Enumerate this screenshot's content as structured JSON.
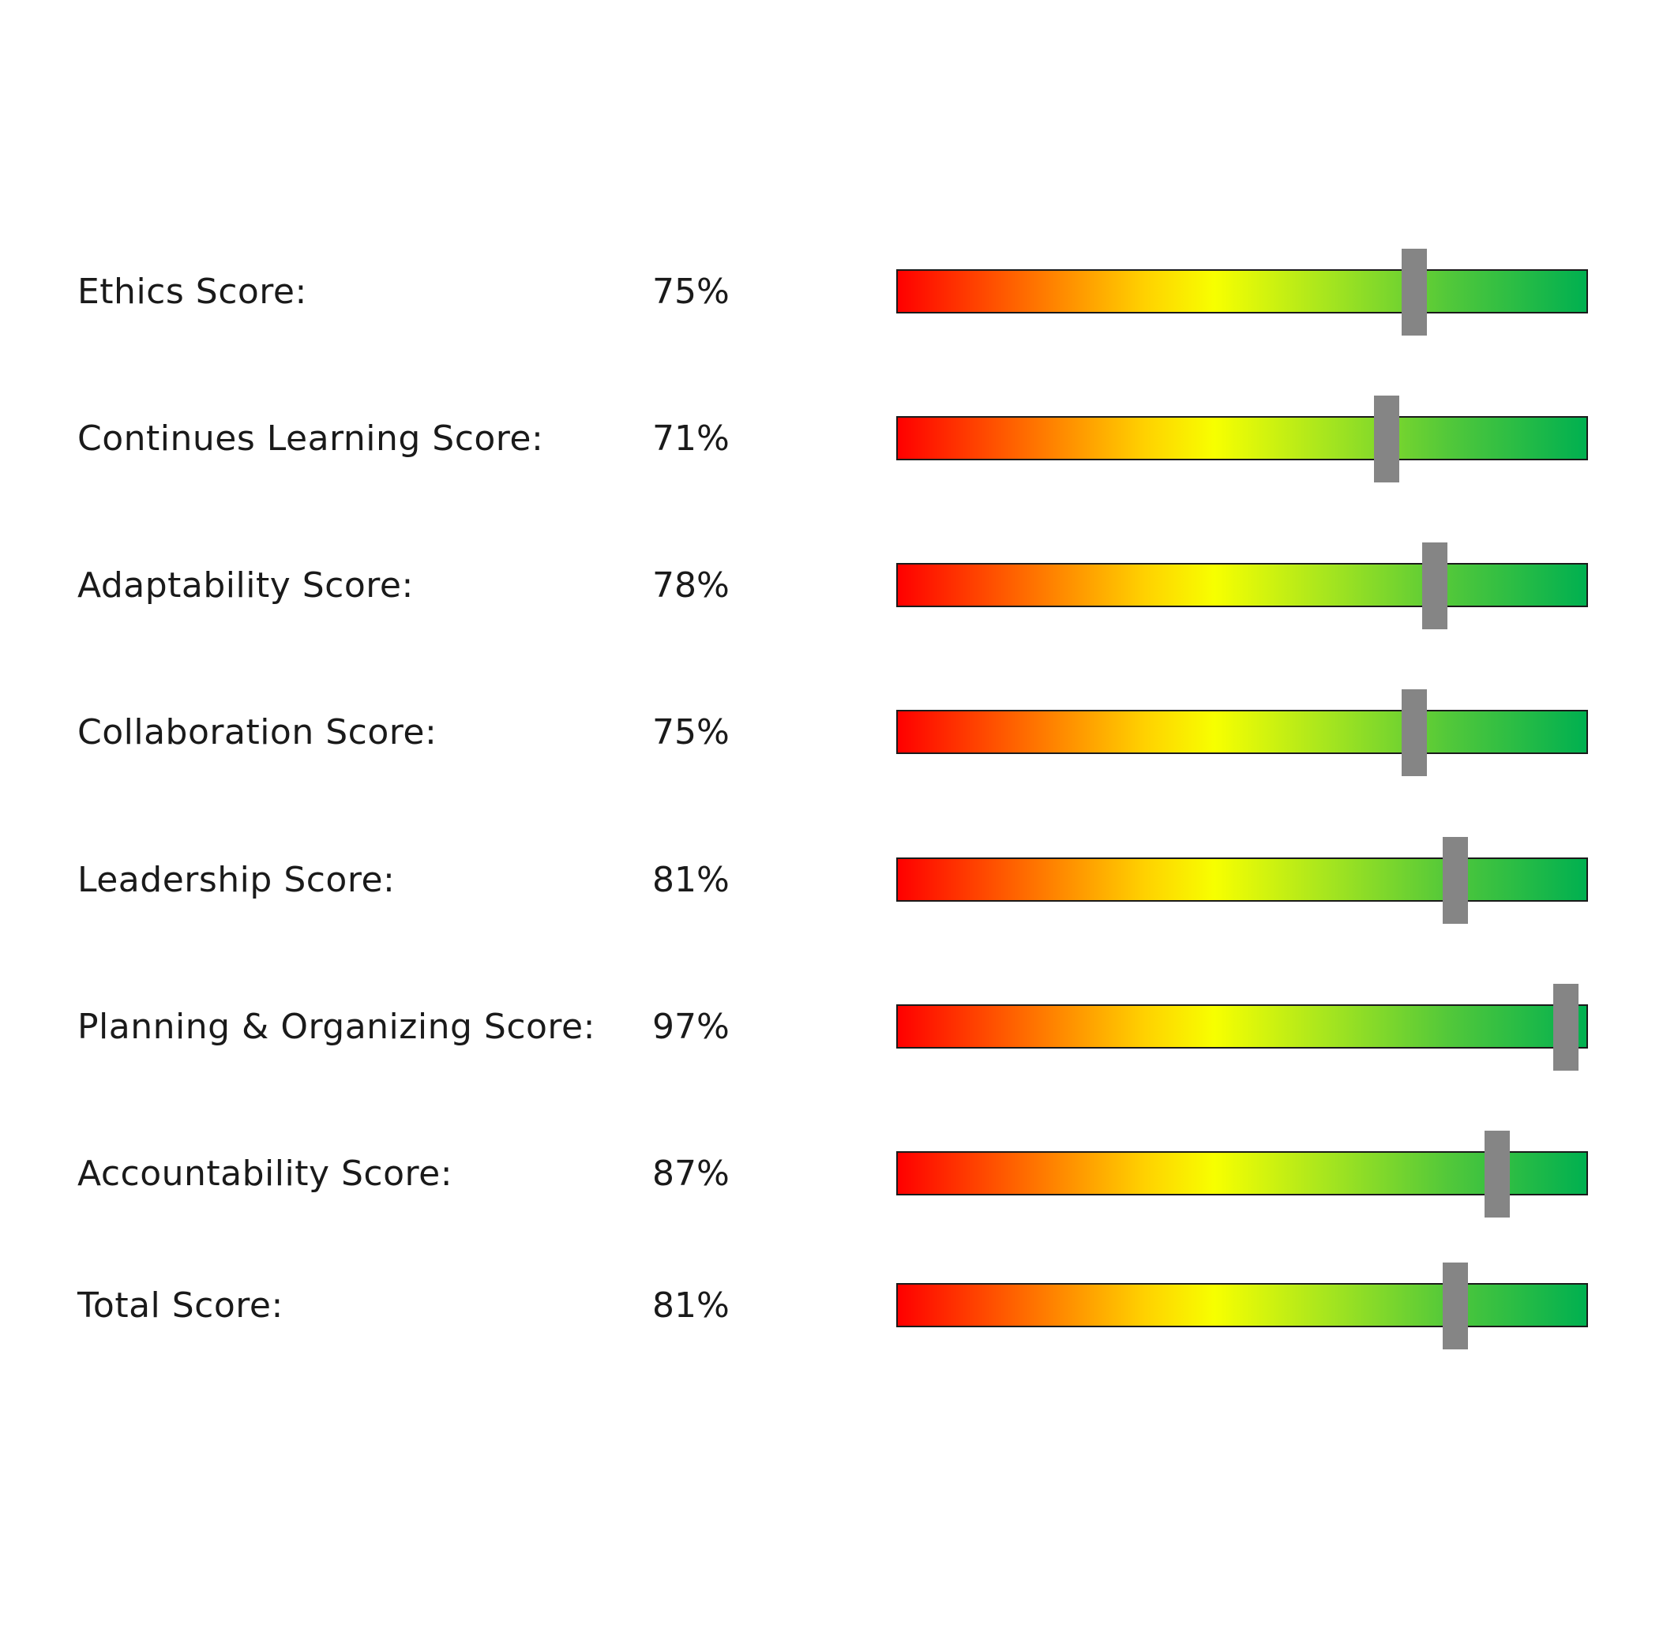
{
  "chart_data": {
    "type": "bar",
    "xlim": [
      0,
      100
    ],
    "unit": "%",
    "gradient_colors": [
      "#ff0000",
      "#ff8000",
      "#ffd200",
      "#f7ff00",
      "#a8e61e",
      "#52c83a",
      "#00b050"
    ],
    "marker_color": "#858585",
    "categories": [
      "Ethics Score:",
      "Continues Learning Score:",
      "Adaptability Score:",
      "Collaboration Score:",
      "Leadership Score:",
      "Planning & Organizing Score:",
      "Accountability Score:",
      "Total Score:"
    ],
    "values": [
      75,
      71,
      78,
      75,
      81,
      97,
      87,
      81
    ],
    "value_labels": [
      "75%",
      "71%",
      "78%",
      "75%",
      "81%",
      "97%",
      "87%",
      "81%"
    ]
  }
}
